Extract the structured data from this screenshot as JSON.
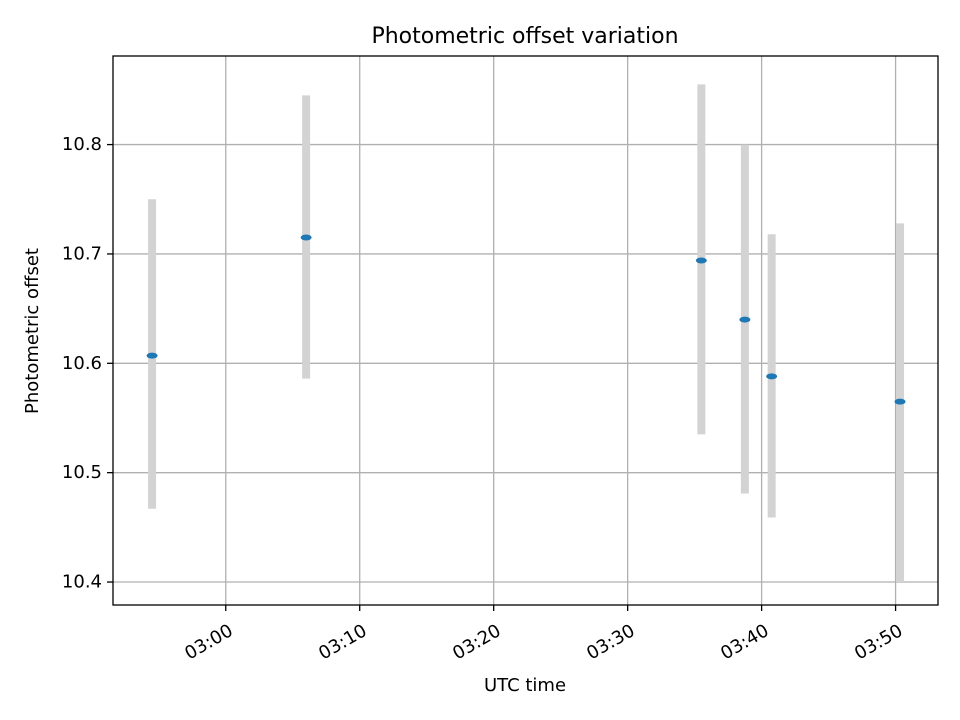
{
  "chart_data": {
    "type": "scatter",
    "title": "Photometric offset variation",
    "xlabel": "UTC time",
    "ylabel": "Photometric offset",
    "x_unit": "time (HH:MM, UTC)",
    "xlim": [
      "02:51:35",
      "03:53:10"
    ],
    "ylim": [
      10.379,
      10.881
    ],
    "x_ticks": [
      "03:00",
      "03:10",
      "03:20",
      "03:30",
      "03:40",
      "03:50"
    ],
    "y_ticks": [
      "10.4",
      "10.5",
      "10.6",
      "10.7",
      "10.8"
    ],
    "grid": true,
    "legend": "none",
    "series": [
      {
        "points": [
          {
            "x": "02:54:30",
            "y": 10.607,
            "yerr_low": 10.467,
            "yerr_high": 10.75
          },
          {
            "x": "03:06:00",
            "y": 10.715,
            "yerr_low": 10.586,
            "yerr_high": 10.845
          },
          {
            "x": "03:35:30",
            "y": 10.694,
            "yerr_low": 10.535,
            "yerr_high": 10.855
          },
          {
            "x": "03:38:45",
            "y": 10.64,
            "yerr_low": 10.481,
            "yerr_high": 10.8
          },
          {
            "x": "03:40:45",
            "y": 10.588,
            "yerr_low": 10.459,
            "yerr_high": 10.718
          },
          {
            "x": "03:50:20",
            "y": 10.565,
            "yerr_low": 10.4,
            "yerr_high": 10.728
          }
        ]
      }
    ],
    "colors": {
      "marker": "#1f77b4",
      "errorbar": "#d3d3d3",
      "grid": "#b0b0b0",
      "axes": "#000000"
    }
  }
}
